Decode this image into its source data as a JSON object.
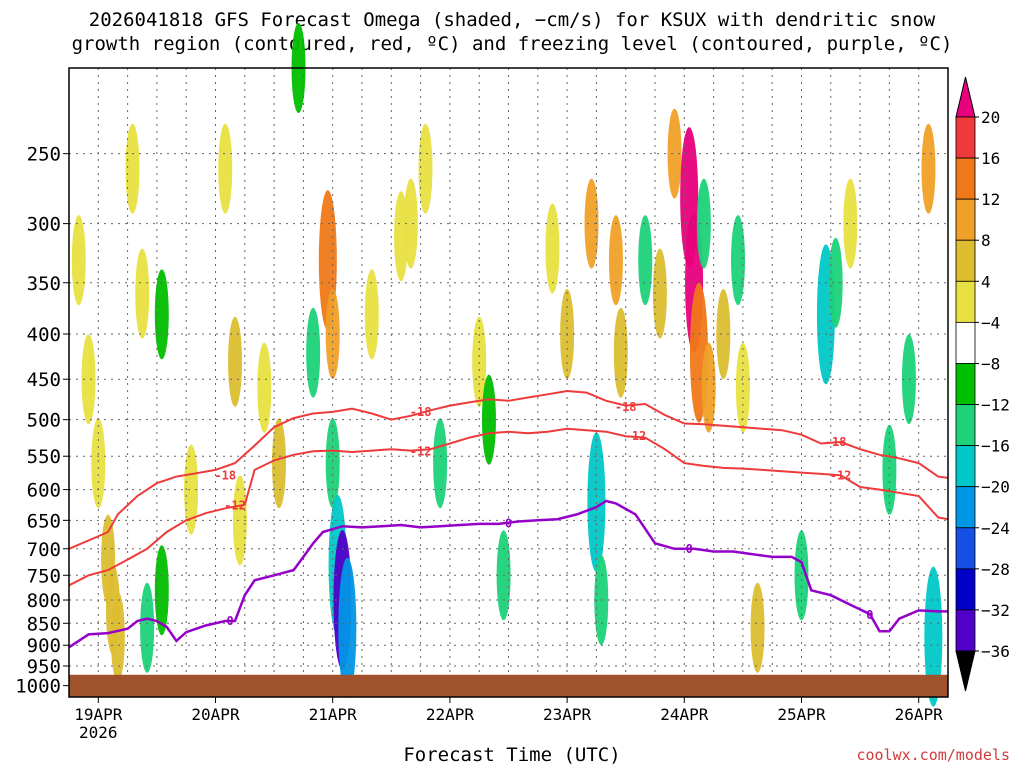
{
  "title_line1": "2026041818 GFS Forecast Omega (shaded, −cm/s) for KSUX with dendritic snow",
  "title_line2": "growth region (contoured, red, ºC) and freezing level (contoured, purple, ºC)",
  "x_axis_title": "Forecast Time (UTC)",
  "credit": "coolwx.com/models",
  "colors": {
    "terrain": "#a0522d",
    "dgz_contour": "#ee3a3a",
    "freezing_contour": "#9400c8",
    "grid": "#666666"
  },
  "chart_data": {
    "type": "heatmap",
    "xlabel": "Forecast Time (UTC)",
    "x_ticks": [
      "19APR",
      "20APR",
      "21APR",
      "22APR",
      "23APR",
      "24APR",
      "25APR",
      "26APR"
    ],
    "x_year_label": "2026",
    "x_tick_hours": [
      6,
      30,
      54,
      78,
      102,
      126,
      150,
      174
    ],
    "x_range_hours": [
      0,
      180
    ],
    "y_scale": "log-pressure",
    "y_ticks": [
      250,
      300,
      350,
      400,
      450,
      500,
      550,
      600,
      650,
      700,
      750,
      800,
      850,
      900,
      950,
      1000
    ],
    "y_range_hPa": [
      200,
      1030
    ],
    "grid": true,
    "colorbar": {
      "labels": [
        "20",
        "16",
        "12",
        "8",
        "4",
        "−4",
        "−8",
        "−12",
        "−16",
        "−20",
        "−24",
        "−28",
        "−32",
        "−36"
      ],
      "colors": [
        "#e8007c",
        "#ee3a3a",
        "#f07818",
        "#f0a028",
        "#dcbe30",
        "#e8e040",
        "#ffffff",
        "#00be00",
        "#1ed27a",
        "#00c8c8",
        "#0096e6",
        "#1450e6",
        "#0000c8",
        "#5000c8",
        "#8c00c8",
        "#a0a0a0",
        "#000000"
      ]
    },
    "omega_cells": [
      {
        "t": 2,
        "p": 330,
        "v": 5
      },
      {
        "t": 4,
        "p": 450,
        "v": 5
      },
      {
        "t": 6,
        "p": 560,
        "v": 5
      },
      {
        "t": 8,
        "p": 720,
        "v": 6
      },
      {
        "t": 9,
        "p": 820,
        "v": 7
      },
      {
        "t": 10,
        "p": 880,
        "v": 7
      },
      {
        "t": 13,
        "p": 260,
        "v": 5
      },
      {
        "t": 15,
        "p": 360,
        "v": 5
      },
      {
        "t": 16,
        "p": 860,
        "v": -8
      },
      {
        "t": 19,
        "p": 380,
        "v": -7
      },
      {
        "t": 19,
        "p": 780,
        "v": -6
      },
      {
        "t": 25,
        "p": 600,
        "v": 5
      },
      {
        "t": 32,
        "p": 260,
        "v": 5
      },
      {
        "t": 34,
        "p": 430,
        "v": 6
      },
      {
        "t": 35,
        "p": 650,
        "v": 5
      },
      {
        "t": 40,
        "p": 460,
        "v": 5
      },
      {
        "t": 43,
        "p": 560,
        "v": 6
      },
      {
        "t": 47,
        "p": 200,
        "v": -6
      },
      {
        "t": 50,
        "p": 420,
        "v": -8
      },
      {
        "t": 53,
        "p": 330,
        "v": 12
      },
      {
        "t": 54,
        "p": 400,
        "v": 9
      },
      {
        "t": 54,
        "p": 560,
        "v": -8
      },
      {
        "t": 55,
        "p": 730,
        "v": -14
      },
      {
        "t": 56,
        "p": 800,
        "v": -30
      },
      {
        "t": 57,
        "p": 860,
        "v": -18
      },
      {
        "t": 62,
        "p": 380,
        "v": 5
      },
      {
        "t": 68,
        "p": 310,
        "v": 5
      },
      {
        "t": 70,
        "p": 300,
        "v": 5
      },
      {
        "t": 73,
        "p": 260,
        "v": 5
      },
      {
        "t": 76,
        "p": 560,
        "v": -8
      },
      {
        "t": 84,
        "p": 430,
        "v": 5
      },
      {
        "t": 86,
        "p": 500,
        "v": -6
      },
      {
        "t": 89,
        "p": 750,
        "v": -8
      },
      {
        "t": 99,
        "p": 320,
        "v": 5
      },
      {
        "t": 102,
        "p": 400,
        "v": 6
      },
      {
        "t": 107,
        "p": 300,
        "v": 8
      },
      {
        "t": 108,
        "p": 620,
        "v": -14
      },
      {
        "t": 109,
        "p": 800,
        "v": -8
      },
      {
        "t": 112,
        "p": 330,
        "v": 8
      },
      {
        "t": 113,
        "p": 420,
        "v": 6
      },
      {
        "t": 118,
        "p": 330,
        "v": -8
      },
      {
        "t": 121,
        "p": 360,
        "v": 6
      },
      {
        "t": 124,
        "p": 250,
        "v": 10
      },
      {
        "t": 127,
        "p": 280,
        "v": 21
      },
      {
        "t": 128,
        "p": 350,
        "v": 20
      },
      {
        "t": 129,
        "p": 420,
        "v": 15
      },
      {
        "t": 130,
        "p": 300,
        "v": -10
      },
      {
        "t": 131,
        "p": 460,
        "v": 9
      },
      {
        "t": 134,
        "p": 400,
        "v": 6
      },
      {
        "t": 137,
        "p": 330,
        "v": -8
      },
      {
        "t": 138,
        "p": 460,
        "v": 5
      },
      {
        "t": 141,
        "p": 860,
        "v": 6
      },
      {
        "t": 150,
        "p": 750,
        "v": -8
      },
      {
        "t": 155,
        "p": 380,
        "v": -12
      },
      {
        "t": 157,
        "p": 350,
        "v": -10
      },
      {
        "t": 160,
        "p": 300,
        "v": 5
      },
      {
        "t": 168,
        "p": 570,
        "v": -8
      },
      {
        "t": 172,
        "p": 450,
        "v": -8
      },
      {
        "t": 176,
        "p": 260,
        "v": 8
      },
      {
        "t": 177,
        "p": 880,
        "v": -14
      }
    ],
    "series": [
      {
        "name": "-18",
        "kind": "dgz",
        "points": [
          [
            0,
            700
          ],
          [
            4,
            685
          ],
          [
            8,
            670
          ],
          [
            10,
            640
          ],
          [
            14,
            610
          ],
          [
            18,
            590
          ],
          [
            22,
            580
          ],
          [
            26,
            575
          ],
          [
            30,
            570
          ],
          [
            34,
            560
          ],
          [
            38,
            535
          ],
          [
            42,
            510
          ],
          [
            46,
            498
          ],
          [
            50,
            492
          ],
          [
            54,
            490
          ],
          [
            58,
            486
          ],
          [
            62,
            492
          ],
          [
            66,
            500
          ],
          [
            70,
            495
          ],
          [
            74,
            488
          ],
          [
            78,
            482
          ],
          [
            82,
            478
          ],
          [
            86,
            474
          ],
          [
            90,
            476
          ],
          [
            94,
            472
          ],
          [
            98,
            468
          ],
          [
            102,
            464
          ],
          [
            106,
            466
          ],
          [
            110,
            476
          ],
          [
            114,
            482
          ],
          [
            118,
            480
          ],
          [
            122,
            494
          ],
          [
            126,
            505
          ],
          [
            130,
            506
          ],
          [
            134,
            508
          ],
          [
            138,
            510
          ],
          [
            142,
            512
          ],
          [
            146,
            514
          ],
          [
            150,
            520
          ],
          [
            154,
            532
          ],
          [
            158,
            530
          ],
          [
            162,
            540
          ],
          [
            166,
            548
          ],
          [
            170,
            553
          ],
          [
            174,
            560
          ],
          [
            178,
            580
          ],
          [
            180,
            582
          ]
        ],
        "labels": [
          {
            "t": 32,
            "p": 578
          },
          {
            "t": 72,
            "p": 490
          },
          {
            "t": 114,
            "p": 484
          },
          {
            "t": 157,
            "p": 530
          }
        ]
      },
      {
        "name": "-12",
        "kind": "dgz",
        "points": [
          [
            0,
            770
          ],
          [
            4,
            750
          ],
          [
            8,
            740
          ],
          [
            12,
            720
          ],
          [
            16,
            700
          ],
          [
            20,
            670
          ],
          [
            24,
            650
          ],
          [
            28,
            638
          ],
          [
            32,
            630
          ],
          [
            36,
            624
          ],
          [
            38,
            570
          ],
          [
            42,
            556
          ],
          [
            46,
            548
          ],
          [
            50,
            543
          ],
          [
            54,
            542
          ],
          [
            58,
            544
          ],
          [
            62,
            542
          ],
          [
            66,
            540
          ],
          [
            70,
            542
          ],
          [
            74,
            540
          ],
          [
            78,
            532
          ],
          [
            82,
            524
          ],
          [
            86,
            518
          ],
          [
            90,
            516
          ],
          [
            94,
            518
          ],
          [
            98,
            516
          ],
          [
            102,
            512
          ],
          [
            106,
            514
          ],
          [
            110,
            516
          ],
          [
            114,
            522
          ],
          [
            118,
            524
          ],
          [
            122,
            540
          ],
          [
            126,
            560
          ],
          [
            130,
            564
          ],
          [
            134,
            567
          ],
          [
            138,
            568
          ],
          [
            142,
            570
          ],
          [
            146,
            572
          ],
          [
            150,
            574
          ],
          [
            154,
            576
          ],
          [
            158,
            578
          ],
          [
            162,
            596
          ],
          [
            166,
            600
          ],
          [
            170,
            605
          ],
          [
            174,
            610
          ],
          [
            178,
            645
          ],
          [
            180,
            648
          ]
        ],
        "labels": [
          {
            "t": 34,
            "p": 625
          },
          {
            "t": 72,
            "p": 543
          },
          {
            "t": 116,
            "p": 522
          },
          {
            "t": 158,
            "p": 578
          }
        ]
      },
      {
        "name": "0",
        "kind": "freezing",
        "points": [
          [
            0,
            905
          ],
          [
            4,
            875
          ],
          [
            8,
            872
          ],
          [
            12,
            862
          ],
          [
            14,
            845
          ],
          [
            16,
            840
          ],
          [
            18,
            845
          ],
          [
            20,
            858
          ],
          [
            22,
            890
          ],
          [
            24,
            870
          ],
          [
            28,
            855
          ],
          [
            32,
            845
          ],
          [
            34,
            845
          ],
          [
            36,
            790
          ],
          [
            38,
            760
          ],
          [
            42,
            750
          ],
          [
            46,
            740
          ],
          [
            48,
            715
          ],
          [
            50,
            690
          ],
          [
            52,
            670
          ],
          [
            56,
            660
          ],
          [
            60,
            662
          ],
          [
            64,
            660
          ],
          [
            68,
            658
          ],
          [
            72,
            662
          ],
          [
            76,
            660
          ],
          [
            80,
            658
          ],
          [
            84,
            656
          ],
          [
            88,
            656
          ],
          [
            92,
            652
          ],
          [
            96,
            650
          ],
          [
            100,
            648
          ],
          [
            104,
            640
          ],
          [
            108,
            628
          ],
          [
            110,
            618
          ],
          [
            112,
            622
          ],
          [
            116,
            640
          ],
          [
            120,
            690
          ],
          [
            124,
            700
          ],
          [
            128,
            700
          ],
          [
            132,
            705
          ],
          [
            136,
            705
          ],
          [
            140,
            710
          ],
          [
            144,
            715
          ],
          [
            148,
            715
          ],
          [
            150,
            725
          ],
          [
            152,
            780
          ],
          [
            156,
            790
          ],
          [
            160,
            810
          ],
          [
            164,
            830
          ],
          [
            166,
            868
          ],
          [
            168,
            868
          ],
          [
            170,
            840
          ],
          [
            174,
            822
          ],
          [
            178,
            824
          ],
          [
            180,
            824
          ]
        ],
        "labels": [
          {
            "t": 33,
            "p": 845
          },
          {
            "t": 90,
            "p": 655
          },
          {
            "t": 127,
            "p": 700
          },
          {
            "t": 164,
            "p": 832
          }
        ]
      }
    ],
    "terrain_top_hPa": 972
  }
}
